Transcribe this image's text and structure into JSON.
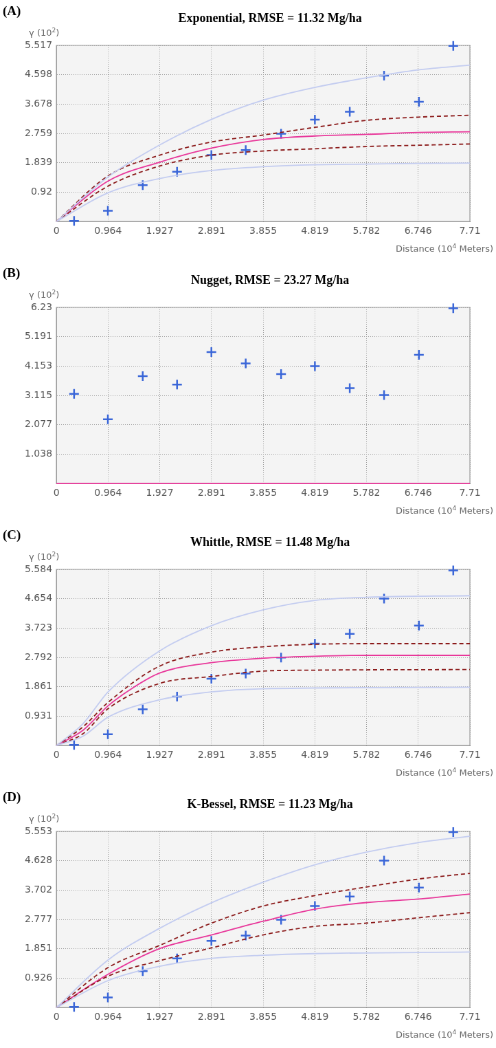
{
  "chart_data": [
    {
      "type": "line",
      "title": "Exponential, RMSE = 11.32 Mg/ha",
      "annotations": [
        "(A)"
      ],
      "xlabel": "Distance (10$^{4}$ Meters)",
      "ylabel": "γ (10$^{2}$)",
      "xlim": [
        0,
        7.71
      ],
      "ylim": [
        0,
        5.517
      ],
      "xticks": [
        0,
        0.964,
        1.927,
        2.891,
        3.855,
        4.819,
        5.782,
        6.746,
        7.71
      ],
      "yticks": [
        0.92,
        1.839,
        2.759,
        3.678,
        4.598,
        5.517
      ],
      "grid": true,
      "legend": false,
      "series": [
        {
          "type": "line",
          "color": "#c3ccf0",
          "line_style": "solid",
          "x": [
            0,
            0.964,
            1.927,
            2.891,
            3.855,
            4.819,
            5.782,
            6.746,
            7.71
          ],
          "values": [
            0,
            1.4,
            2.4,
            3.2,
            3.8,
            4.2,
            4.5,
            4.75,
            4.9
          ]
        },
        {
          "type": "line",
          "color": "#c3ccf0",
          "line_style": "solid",
          "x": [
            0,
            0.964,
            1.927,
            2.891,
            3.855,
            4.819,
            5.782,
            6.746,
            7.71
          ],
          "values": [
            0,
            0.9,
            1.35,
            1.6,
            1.72,
            1.78,
            1.8,
            1.82,
            1.83
          ]
        },
        {
          "type": "line",
          "color": "#8b1a1a",
          "line_style": "dashed",
          "x": [
            0,
            0.964,
            1.927,
            2.891,
            3.855,
            4.819,
            5.782,
            6.746,
            7.71
          ],
          "values": [
            0,
            1.43,
            2.08,
            2.49,
            2.71,
            2.95,
            3.17,
            3.27,
            3.33
          ]
        },
        {
          "type": "line",
          "color": "#8b1a1a",
          "line_style": "dashed",
          "x": [
            0,
            0.964,
            1.927,
            2.891,
            3.855,
            4.819,
            5.782,
            6.746,
            7.71
          ],
          "values": [
            0,
            1.11,
            1.74,
            2.08,
            2.21,
            2.28,
            2.35,
            2.39,
            2.43
          ]
        },
        {
          "type": "line",
          "color": "#e8379a",
          "line_style": "solid",
          "x": [
            0,
            0.964,
            1.927,
            2.891,
            3.855,
            4.819,
            5.782,
            6.746,
            7.71
          ],
          "values": [
            0,
            1.27,
            1.86,
            2.3,
            2.57,
            2.68,
            2.73,
            2.79,
            2.81
          ]
        },
        {
          "type": "scatter",
          "color": "#3a66d8",
          "marker": "cross",
          "x": [
            0.33,
            0.96,
            1.61,
            2.25,
            2.89,
            3.53,
            4.19,
            4.82,
            5.47,
            6.11,
            6.76,
            7.4
          ],
          "values": [
            0.02,
            0.34,
            1.14,
            1.56,
            2.08,
            2.24,
            2.75,
            3.19,
            3.44,
            4.57,
            3.75,
            5.5
          ]
        }
      ]
    },
    {
      "type": "line",
      "title": "Nugget, RMSE = 23.27 Mg/ha",
      "annotations": [
        "(B)"
      ],
      "xlabel": "Distance (10$^{4}$ Meters)",
      "ylabel": "γ (10$^{2}$)",
      "xlim": [
        0,
        7.71
      ],
      "ylim": [
        0,
        6.23
      ],
      "xticks": [
        0,
        0.964,
        1.927,
        2.891,
        3.855,
        4.819,
        5.782,
        6.746,
        7.71
      ],
      "yticks": [
        1.038,
        2.077,
        3.115,
        4.153,
        5.191,
        6.23
      ],
      "grid": true,
      "legend": false,
      "series": [
        {
          "type": "line",
          "color": "#e8379a",
          "line_style": "solid",
          "x": [
            0,
            7.71
          ],
          "values": [
            0,
            0
          ]
        },
        {
          "type": "scatter",
          "color": "#3a66d8",
          "marker": "cross",
          "x": [
            0.33,
            0.96,
            1.61,
            2.25,
            2.89,
            3.53,
            4.19,
            4.82,
            5.47,
            6.11,
            6.76,
            7.4
          ],
          "values": [
            3.17,
            2.27,
            3.8,
            3.5,
            4.65,
            4.25,
            3.87,
            4.15,
            3.37,
            3.13,
            4.55,
            6.2
          ]
        }
      ]
    },
    {
      "type": "line",
      "title": "Whittle, RMSE = 11.48 Mg/ha",
      "annotations": [
        "(C)"
      ],
      "xlabel": "Distance (10$^{4}$ Meters)",
      "ylabel": "γ (10$^{2}$)",
      "xlim": [
        0,
        7.71
      ],
      "ylim": [
        0,
        5.584
      ],
      "xticks": [
        0,
        0.964,
        1.927,
        2.891,
        3.855,
        4.819,
        5.782,
        6.746,
        7.71
      ],
      "yticks": [
        0.931,
        1.861,
        2.792,
        3.723,
        4.654,
        5.584
      ],
      "grid": true,
      "legend": false,
      "series": [
        {
          "type": "line",
          "color": "#c3ccf0",
          "line_style": "solid",
          "x": [
            0,
            0.5,
            0.964,
            1.927,
            2.891,
            3.855,
            4.819,
            5.782,
            7.71
          ],
          "values": [
            0,
            0.7,
            1.7,
            3.0,
            3.8,
            4.3,
            4.6,
            4.7,
            4.75
          ]
        },
        {
          "type": "line",
          "color": "#c3ccf0",
          "line_style": "solid",
          "x": [
            0,
            0.5,
            0.964,
            1.927,
            2.891,
            3.855,
            7.71
          ],
          "values": [
            0,
            0.3,
            0.9,
            1.45,
            1.7,
            1.8,
            1.85
          ]
        },
        {
          "type": "line",
          "color": "#8b1a1a",
          "line_style": "dashed",
          "x": [
            0,
            0.5,
            0.964,
            1.927,
            2.891,
            3.855,
            4.819,
            5.782,
            7.71
          ],
          "values": [
            0,
            0.6,
            1.37,
            2.52,
            2.96,
            3.13,
            3.21,
            3.23,
            3.23
          ]
        },
        {
          "type": "line",
          "color": "#8b1a1a",
          "line_style": "dashed",
          "x": [
            0,
            0.5,
            0.964,
            1.927,
            2.891,
            3.855,
            4.819,
            7.71
          ],
          "values": [
            0,
            0.38,
            1.17,
            1.97,
            2.19,
            2.36,
            2.39,
            2.41
          ]
        },
        {
          "type": "line",
          "color": "#e8379a",
          "line_style": "solid",
          "x": [
            0,
            0.5,
            0.964,
            1.427,
            1.927,
            2.891,
            3.855,
            4.819,
            5.782,
            7.71
          ],
          "values": [
            0,
            0.49,
            1.26,
            1.83,
            2.3,
            2.63,
            2.77,
            2.83,
            2.86,
            2.86
          ]
        },
        {
          "type": "scatter",
          "color": "#3a66d8",
          "marker": "cross",
          "x": [
            0.33,
            0.96,
            1.61,
            2.25,
            2.89,
            3.53,
            4.19,
            4.82,
            5.47,
            6.11,
            6.76,
            7.4
          ],
          "values": [
            0.02,
            0.36,
            1.15,
            1.55,
            2.12,
            2.28,
            2.79,
            3.23,
            3.54,
            4.66,
            3.8,
            5.55
          ]
        }
      ]
    },
    {
      "type": "line",
      "title": "K-Bessel, RMSE = 11.23 Mg/ha",
      "annotations": [
        "(D)"
      ],
      "xlabel": "Distance (10$^{4}$ Meters)",
      "ylabel": "γ (10$^{2}$)",
      "xlim": [
        0,
        7.71
      ],
      "ylim": [
        0,
        5.553
      ],
      "xticks": [
        0,
        0.964,
        1.927,
        2.891,
        3.855,
        4.819,
        5.782,
        6.746,
        7.71
      ],
      "yticks": [
        0.926,
        1.851,
        2.777,
        3.702,
        4.628,
        5.553
      ],
      "grid": true,
      "legend": false,
      "series": [
        {
          "type": "line",
          "color": "#c3ccf0",
          "line_style": "solid",
          "x": [
            0,
            0.964,
            1.927,
            2.891,
            3.855,
            4.819,
            5.782,
            6.746,
            7.71
          ],
          "values": [
            0,
            1.5,
            2.5,
            3.3,
            3.95,
            4.5,
            4.9,
            5.2,
            5.4
          ]
        },
        {
          "type": "line",
          "color": "#c3ccf0",
          "line_style": "solid",
          "x": [
            0,
            0.964,
            1.927,
            2.891,
            3.855,
            4.819,
            7.71
          ],
          "values": [
            0,
            0.85,
            1.3,
            1.55,
            1.65,
            1.7,
            1.75
          ]
        },
        {
          "type": "line",
          "color": "#8b1a1a",
          "line_style": "dashed",
          "x": [
            0,
            0.964,
            1.927,
            2.891,
            3.855,
            4.819,
            5.782,
            6.746,
            7.71
          ],
          "values": [
            0,
            1.26,
            1.96,
            2.66,
            3.2,
            3.53,
            3.8,
            4.05,
            4.23
          ]
        },
        {
          "type": "line",
          "color": "#8b1a1a",
          "line_style": "dashed",
          "x": [
            0,
            0.964,
            1.927,
            2.891,
            3.855,
            4.819,
            5.782,
            6.746,
            7.71
          ],
          "values": [
            0,
            0.99,
            1.48,
            1.88,
            2.29,
            2.56,
            2.66,
            2.83,
            2.99
          ]
        },
        {
          "type": "line",
          "color": "#e8379a",
          "line_style": "solid",
          "x": [
            0,
            0.964,
            1.927,
            2.891,
            3.855,
            4.819,
            5.782,
            6.746,
            7.71
          ],
          "values": [
            0,
            1.05,
            1.86,
            2.29,
            2.72,
            3.1,
            3.31,
            3.42,
            3.58
          ]
        },
        {
          "type": "scatter",
          "color": "#3a66d8",
          "marker": "cross",
          "x": [
            0.33,
            0.96,
            1.61,
            2.25,
            2.89,
            3.53,
            4.19,
            4.82,
            5.47,
            6.11,
            6.76,
            7.4
          ],
          "values": [
            0.02,
            0.32,
            1.15,
            1.55,
            2.1,
            2.27,
            2.77,
            3.2,
            3.5,
            4.63,
            3.78,
            5.53
          ]
        }
      ]
    }
  ]
}
